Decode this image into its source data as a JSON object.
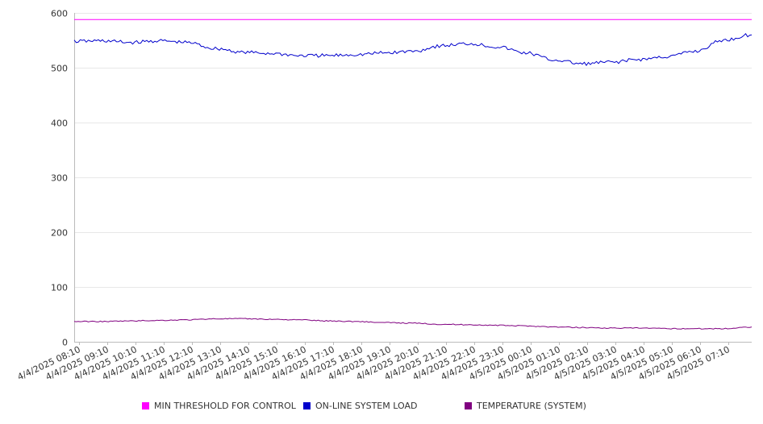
{
  "chart_data": {
    "type": "line",
    "title": "",
    "xlabel": "",
    "ylabel": "",
    "ylim": [
      0,
      600
    ],
    "yticks": [
      0,
      100,
      200,
      300,
      400,
      500,
      600
    ],
    "grid": true,
    "legend_position": "bottom",
    "x_tick_labels": [
      "4/4/2025 08:10",
      "4/4/2025 09:10",
      "4/4/2025 10:10",
      "4/4/2025 11:10",
      "4/4/2025 12:10",
      "4/4/2025 13:10",
      "4/4/2025 14:10",
      "4/4/2025 15:10",
      "4/4/2025 16:10",
      "4/4/2025 17:10",
      "4/4/2025 18:10",
      "4/4/2025 19:10",
      "4/4/2025 20:10",
      "4/4/2025 21:10",
      "4/4/2025 22:10",
      "4/4/2025 23:10",
      "4/5/2025 00:10",
      "4/5/2025 01:10",
      "4/5/2025 02:10",
      "4/5/2025 03:10",
      "4/5/2025 04:10",
      "4/5/2025 05:10",
      "4/5/2025 06:10",
      "4/5/2025 07:10"
    ],
    "x_range": [
      "4/4/2025 08:00",
      "4/5/2025 08:00"
    ],
    "x": [
      "4/4/2025 08:00",
      "4/4/2025 09:00",
      "4/4/2025 10:00",
      "4/4/2025 11:00",
      "4/4/2025 12:00",
      "4/4/2025 13:00",
      "4/4/2025 14:00",
      "4/4/2025 15:00",
      "4/4/2025 16:00",
      "4/4/2025 17:00",
      "4/4/2025 18:00",
      "4/4/2025 19:00",
      "4/4/2025 20:00",
      "4/4/2025 21:00",
      "4/4/2025 22:00",
      "4/4/2025 23:00",
      "4/5/2025 00:00",
      "4/5/2025 01:00",
      "4/5/2025 02:00",
      "4/5/2025 03:00",
      "4/5/2025 04:00",
      "4/5/2025 05:00",
      "4/5/2025 06:00",
      "4/5/2025 07:00",
      "4/5/2025 08:00"
    ],
    "series": [
      {
        "name": "MIN THRESHOLD FOR CONTROL",
        "color": "#ff00ff",
        "values": [
          588,
          588,
          588,
          588,
          588,
          588,
          588,
          588,
          588,
          588,
          588,
          588,
          588,
          588,
          588,
          588,
          588,
          588,
          588,
          588,
          588,
          588,
          588,
          588,
          588
        ]
      },
      {
        "name": "ON-LINE SYSTEM LOAD",
        "color": "#0000cc",
        "values": [
          548,
          549,
          546,
          549,
          546,
          535,
          528,
          526,
          522,
          522,
          524,
          527,
          530,
          540,
          544,
          538,
          527,
          514,
          507,
          510,
          515,
          520,
          530,
          550,
          560
        ]
      },
      {
        "name": "TEMPERATURE (SYSTEM)",
        "color": "#800080",
        "values": [
          37,
          37,
          38,
          39,
          40,
          42,
          42,
          41,
          40,
          38,
          37,
          35,
          34,
          32,
          31,
          30,
          29,
          27,
          26,
          25,
          25,
          24,
          24,
          24,
          27
        ]
      }
    ]
  },
  "legend": {
    "items": [
      {
        "label": "MIN THRESHOLD FOR CONTROL",
        "color": "#ff00ff"
      },
      {
        "label": "ON-LINE SYSTEM LOAD",
        "color": "#0000cc"
      },
      {
        "label": "TEMPERATURE (SYSTEM)",
        "color": "#800080"
      }
    ]
  }
}
